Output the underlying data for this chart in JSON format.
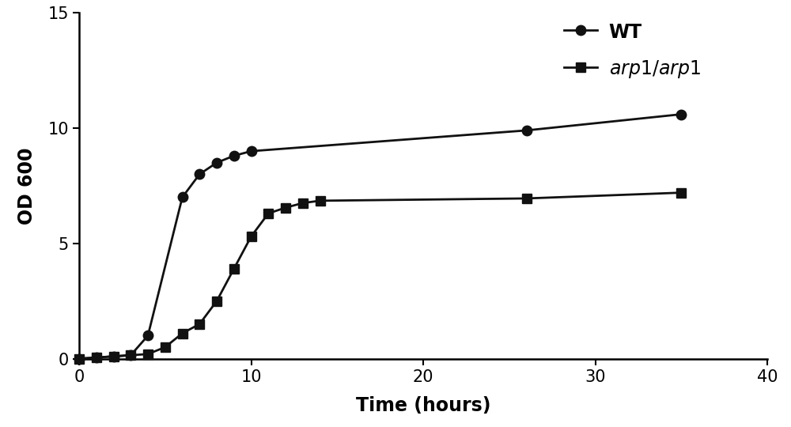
{
  "wt_x": [
    0,
    1,
    2,
    3,
    4,
    6,
    7,
    8,
    9,
    10,
    26,
    35
  ],
  "wt_y": [
    0,
    0.05,
    0.1,
    0.15,
    1.0,
    7.0,
    8.0,
    8.5,
    8.8,
    9.0,
    9.9,
    10.6
  ],
  "mut_x": [
    0,
    1,
    2,
    3,
    4,
    5,
    6,
    7,
    8,
    9,
    10,
    11,
    12,
    13,
    14,
    26,
    35
  ],
  "mut_y": [
    0,
    0.05,
    0.1,
    0.15,
    0.2,
    0.5,
    1.1,
    1.5,
    2.5,
    3.9,
    5.3,
    6.3,
    6.55,
    6.75,
    6.85,
    6.95,
    7.2
  ],
  "xlabel": "Time (hours)",
  "ylabel": "OD 600",
  "wt_label": "WT",
  "mut_label_italic": "$\\it{arp1/arp1}$",
  "xlim": [
    0,
    40
  ],
  "ylim": [
    0,
    15
  ],
  "xticks": [
    0,
    10,
    20,
    30,
    40
  ],
  "yticks": [
    0,
    5,
    10,
    15
  ],
  "line_color": "#111111",
  "bg_color": "#ffffff",
  "marker_wt": "o",
  "marker_mut": "s",
  "marker_size_wt": 9,
  "marker_size_mut": 8,
  "line_width": 2.0,
  "label_fontsize": 17,
  "tick_fontsize": 15,
  "legend_fontsize": 17
}
